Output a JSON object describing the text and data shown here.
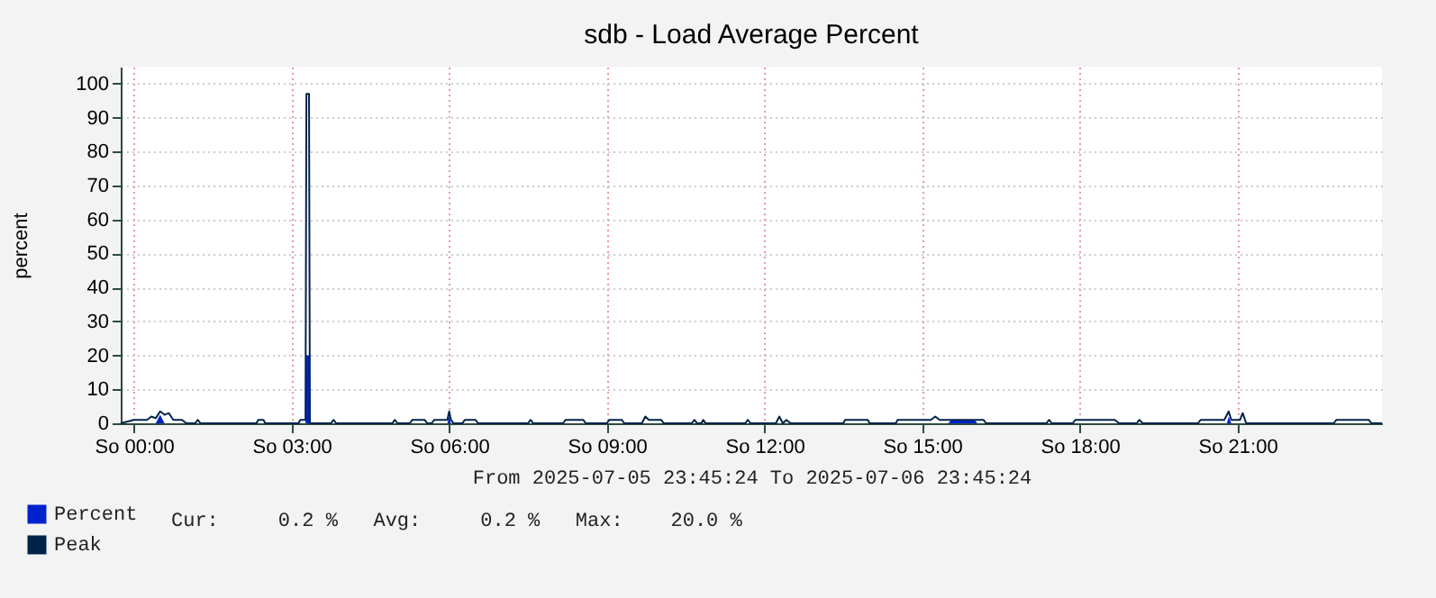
{
  "chart_data": {
    "type": "line",
    "title": "sdb - Load Average Percent",
    "xlabel": "From 2025-07-05 23:45:24 To 2025-07-06 23:45:24",
    "ylabel": "percent",
    "annotations": [
      "Cur:     0.2 %   Avg:     0.2 %   Max:    20.0 %"
    ],
    "xlim": [
      "2025-07-05T23:45",
      "2025-07-06T23:45"
    ],
    "xticks": [
      {
        "value": "2025-07-06T00:00",
        "label": "So 00:00"
      },
      {
        "value": "2025-07-06T03:00",
        "label": "So 03:00"
      },
      {
        "value": "2025-07-06T06:00",
        "label": "So 06:00"
      },
      {
        "value": "2025-07-06T09:00",
        "label": "So 09:00"
      },
      {
        "value": "2025-07-06T12:00",
        "label": "So 12:00"
      },
      {
        "value": "2025-07-06T15:00",
        "label": "So 15:00"
      },
      {
        "value": "2025-07-06T18:00",
        "label": "So 18:00"
      },
      {
        "value": "2025-07-06T21:00",
        "label": "So 21:00"
      }
    ],
    "ylim": [
      0,
      105
    ],
    "yticks": [
      0,
      10,
      20,
      30,
      40,
      50,
      60,
      70,
      80,
      90,
      100
    ],
    "grid": true,
    "legend": "bottom left",
    "marker": "none",
    "series": [
      {
        "name": "Percent",
        "type": "area",
        "color": "#0022cc",
        "x": [
          "2025-07-05T23:45",
          "2025-07-06T00:25",
          "2025-07-06T00:30",
          "2025-07-06T00:35",
          "2025-07-06T03:16",
          "2025-07-06T03:17",
          "2025-07-06T03:20",
          "2025-07-06T03:21",
          "2025-07-06T05:58",
          "2025-07-06T06:00",
          "2025-07-06T06:02",
          "2025-07-06T15:30",
          "2025-07-06T15:33",
          "2025-07-06T16:00",
          "2025-07-06T16:03",
          "2025-07-06T20:48",
          "2025-07-06T20:50",
          "2025-07-06T20:53",
          "2025-07-06T23:45"
        ],
        "values": [
          0,
          0,
          2.5,
          0,
          0,
          20,
          20,
          0,
          0,
          2,
          0,
          0,
          1,
          1,
          0,
          0,
          2,
          0,
          0
        ]
      },
      {
        "name": "Peak",
        "type": "line",
        "color": "#00234a",
        "x": [
          "2025-07-05T23:45",
          "2025-07-06T00:00",
          "2025-07-06T00:15",
          "2025-07-06T00:20",
          "2025-07-06T00:25",
          "2025-07-06T00:30",
          "2025-07-06T00:35",
          "2025-07-06T00:40",
          "2025-07-06T00:45",
          "2025-07-06T00:55",
          "2025-07-06T01:00",
          "2025-07-06T01:10",
          "2025-07-06T01:13",
          "2025-07-06T01:16",
          "2025-07-06T02:20",
          "2025-07-06T02:22",
          "2025-07-06T02:28",
          "2025-07-06T02:30",
          "2025-07-06T03:08",
          "2025-07-06T03:10",
          "2025-07-06T03:16",
          "2025-07-06T03:17",
          "2025-07-06T03:20",
          "2025-07-06T03:21",
          "2025-07-06T03:45",
          "2025-07-06T03:48",
          "2025-07-06T03:51",
          "2025-07-06T04:55",
          "2025-07-06T04:58",
          "2025-07-06T05:01",
          "2025-07-06T05:15",
          "2025-07-06T05:18",
          "2025-07-06T05:32",
          "2025-07-06T05:35",
          "2025-07-06T05:40",
          "2025-07-06T05:43",
          "2025-07-06T05:58",
          "2025-07-06T06:00",
          "2025-07-06T06:02",
          "2025-07-06T06:05",
          "2025-07-06T06:15",
          "2025-07-06T06:18",
          "2025-07-06T06:30",
          "2025-07-06T06:33",
          "2025-07-06T07:30",
          "2025-07-06T07:33",
          "2025-07-06T07:36",
          "2025-07-06T08:10",
          "2025-07-06T08:13",
          "2025-07-06T08:33",
          "2025-07-06T08:36",
          "2025-07-06T09:00",
          "2025-07-06T09:03",
          "2025-07-06T09:17",
          "2025-07-06T09:20",
          "2025-07-06T09:40",
          "2025-07-06T09:44",
          "2025-07-06T09:48",
          "2025-07-06T10:02",
          "2025-07-06T10:05",
          "2025-07-06T10:37",
          "2025-07-06T10:40",
          "2025-07-06T10:43",
          "2025-07-06T10:48",
          "2025-07-06T10:50",
          "2025-07-06T10:53",
          "2025-07-06T11:38",
          "2025-07-06T11:41",
          "2025-07-06T11:44",
          "2025-07-06T12:13",
          "2025-07-06T12:17",
          "2025-07-06T12:21",
          "2025-07-06T12:25",
          "2025-07-06T12:30",
          "2025-07-06T13:30",
          "2025-07-06T13:32",
          "2025-07-06T13:58",
          "2025-07-06T14:00",
          "2025-07-06T14:30",
          "2025-07-06T14:32",
          "2025-07-06T15:10",
          "2025-07-06T15:15",
          "2025-07-06T15:20",
          "2025-07-06T16:10",
          "2025-07-06T16:13",
          "2025-07-06T17:22",
          "2025-07-06T17:25",
          "2025-07-06T17:28",
          "2025-07-06T17:52",
          "2025-07-06T17:55",
          "2025-07-06T18:40",
          "2025-07-06T18:45",
          "2025-07-06T19:05",
          "2025-07-06T19:08",
          "2025-07-06T19:12",
          "2025-07-06T20:15",
          "2025-07-06T20:18",
          "2025-07-06T20:45",
          "2025-07-06T20:50",
          "2025-07-06T20:53",
          "2025-07-06T21:03",
          "2025-07-06T21:06",
          "2025-07-06T21:10",
          "2025-07-06T22:50",
          "2025-07-06T22:53",
          "2025-07-06T23:30",
          "2025-07-06T23:33",
          "2025-07-06T23:45"
        ],
        "values": [
          0,
          1,
          1,
          2,
          1.5,
          3.5,
          2.5,
          3,
          1,
          1,
          0,
          0,
          1,
          0,
          0,
          1,
          1,
          0,
          0,
          1,
          1,
          97,
          97,
          0,
          0,
          1,
          0,
          0,
          1,
          0,
          0,
          1,
          1,
          0,
          0,
          1,
          1,
          3.5,
          1,
          0,
          0,
          1,
          1,
          0,
          0,
          1,
          0,
          0,
          1,
          1,
          0,
          0,
          1,
          1,
          0,
          0,
          2,
          1,
          1,
          0,
          0,
          1,
          0,
          0,
          1,
          0,
          0,
          1,
          0,
          0,
          2,
          0,
          1,
          0,
          0,
          1,
          1,
          0,
          0,
          1,
          1,
          2,
          1,
          1,
          0,
          0,
          1,
          0,
          0,
          1,
          1,
          0,
          0,
          1,
          0,
          0,
          1,
          1,
          3.5,
          1,
          1,
          3,
          0,
          0,
          1,
          1,
          0,
          0
        ]
      }
    ]
  }
}
